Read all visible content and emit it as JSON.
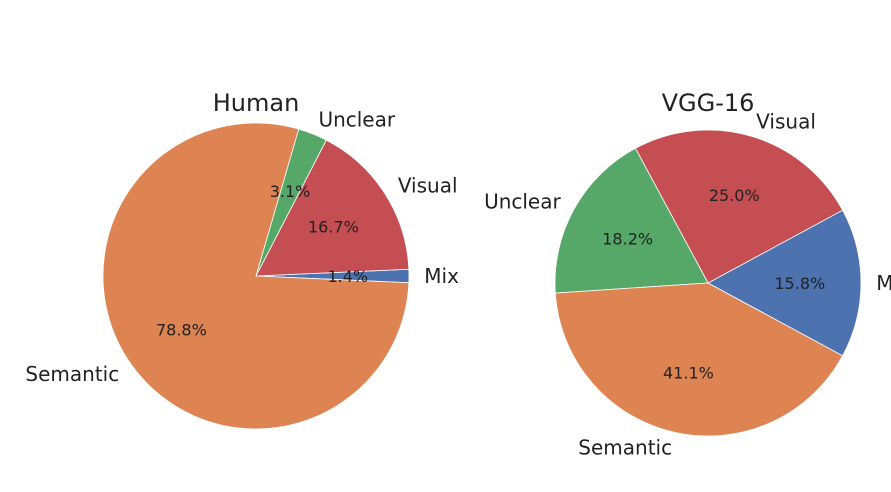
{
  "chart_data": [
    {
      "type": "pie",
      "title": "Human",
      "slices": [
        {
          "label": "Mix",
          "value": 1.4,
          "pct_label": "1.4%",
          "color": "#4c72b0"
        },
        {
          "label": "Visual",
          "value": 16.7,
          "pct_label": "16.7%",
          "color": "#c44e52"
        },
        {
          "label": "Unclear",
          "value": 3.1,
          "pct_label": "3.1%",
          "color": "#55a868"
        },
        {
          "label": "Semantic",
          "value": 78.8,
          "pct_label": "78.8%",
          "color": "#dd8452"
        }
      ]
    },
    {
      "type": "pie",
      "title": "VGG-16",
      "slices": [
        {
          "label": "Mix",
          "value": 15.8,
          "pct_label": "15.8%",
          "color": "#4c72b0"
        },
        {
          "label": "Visual",
          "value": 25.0,
          "pct_label": "25.0%",
          "color": "#c44e52"
        },
        {
          "label": "Unclear",
          "value": 18.2,
          "pct_label": "18.2%",
          "color": "#55a868"
        },
        {
          "label": "Semantic",
          "value": 41.1,
          "pct_label": "41.1%",
          "color": "#dd8452"
        }
      ]
    }
  ]
}
